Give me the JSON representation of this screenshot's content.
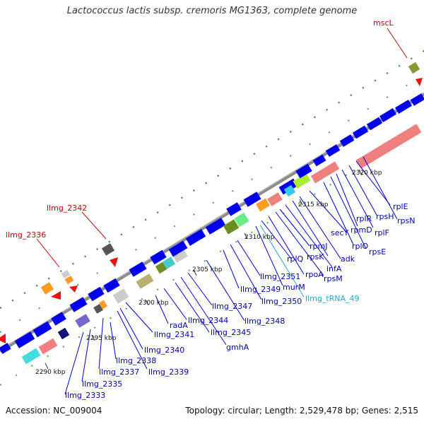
{
  "title": "Lactococcus lactis subsp. cremoris MG1363, complete genome",
  "accession": "Accession: NC_009004",
  "summary": "Topology: circular; Length: 2,529,478 bp; Genes: 2,515",
  "colors": {
    "backbone": "#888888",
    "cds": "#0000ee",
    "rrna": "#e07070",
    "trna_label": "#22aacc",
    "highlight_label": "#cc0000",
    "label": "#0000bb",
    "tick": "#2a8a2a"
  },
  "scale_labels": [
    "2290 kbp",
    "2295 kbp",
    "2300 kbp",
    "2305 kbp",
    "2310 kbp",
    "2315 kbp",
    "2320 kbp"
  ],
  "gene_labels": [
    "mscL",
    "llmg_2342",
    "llmg_2336",
    "llmg_2333",
    "llmg_2335",
    "llmg_2337",
    "llmg_2338",
    "llmg_2339",
    "llmg_2340",
    "llmg_2341",
    "radA",
    "llmg_2344",
    "llmg_2345",
    "gmhA",
    "llmg_2347",
    "llmg_2348",
    "llmg_2349",
    "llmg_2350",
    "llmg_2351",
    "murM",
    "llmg_tRNA_49",
    "rplQ",
    "rpoA",
    "rpsM",
    "rpsK",
    "infA",
    "rpmJ",
    "adk",
    "secY",
    "rplO",
    "rpmD",
    "rpsE",
    "rplR",
    "rplF",
    "rpsH",
    "rplE",
    "rpsN"
  ]
}
